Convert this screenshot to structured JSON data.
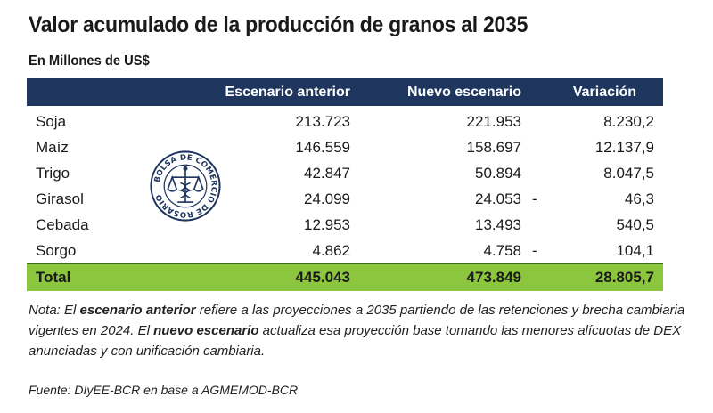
{
  "title": "Valor acumulado de la producción de granos al 2035",
  "subtitle": "En Millones de US$",
  "table": {
    "headers": [
      "",
      "Escenario anterior",
      "Nuevo escenario",
      "Variación"
    ],
    "rows": [
      {
        "label": "Soja",
        "anterior": "213.723",
        "nuevo": "221.953",
        "neg": "",
        "variacion": "8.230,2"
      },
      {
        "label": "Maíz",
        "anterior": "146.559",
        "nuevo": "158.697",
        "neg": "",
        "variacion": "12.137,9"
      },
      {
        "label": "Trigo",
        "anterior": "42.847",
        "nuevo": "50.894",
        "neg": "",
        "variacion": "8.047,5"
      },
      {
        "label": "Girasol",
        "anterior": "24.099",
        "nuevo": "24.053",
        "neg": "-",
        "variacion": "46,3"
      },
      {
        "label": "Cebada",
        "anterior": "12.953",
        "nuevo": "13.493",
        "neg": "",
        "variacion": "540,5"
      },
      {
        "label": "Sorgo",
        "anterior": "4.862",
        "nuevo": "4.758",
        "neg": "-",
        "variacion": "104,1"
      }
    ],
    "total": {
      "label": "Total",
      "anterior": "445.043",
      "nuevo": "473.849",
      "variacion": "28.805,7"
    }
  },
  "seal": {
    "text": "BOLSA DE COMERCIO DE ROSARIO",
    "icon": "bolsa-comercio-rosario-seal",
    "color": "#1e355e"
  },
  "note": {
    "p1": "Nota: El ",
    "b1": "escenario anterior",
    "p2": " refiere a las proyecciones a 2035 partiendo de las retenciones y brecha cambiaria vigentes en 2024. El ",
    "b2": "nuevo escenario",
    "p3": " actualiza esa proyección base tomando las menores alícuotas de DEX anunciadas y con unificación cambiaria."
  },
  "source": "Fuente: DIyEE-BCR en base a AGMEMOD-BCR",
  "colors": {
    "header_bg": "#1e355e",
    "total_bg": "#8cc63e"
  }
}
